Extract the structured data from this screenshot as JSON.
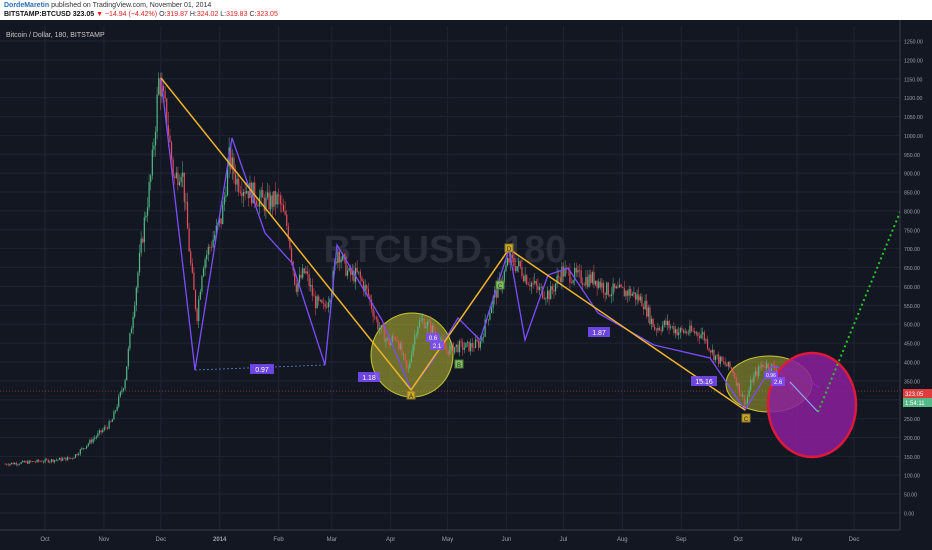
{
  "header": {
    "author": "DordeMaretin",
    "published_text": "published on TradingView.com, November 01, 2014",
    "symbol": "BITSTAMP:BTCUSD",
    "last": "323.05",
    "change": "−14.94 (−4.42%)",
    "open_label": "O:",
    "open": "319.87",
    "high_label": "H:",
    "high": "324.02",
    "low_label": "L:",
    "low": "319.83",
    "close_label": "C:",
    "close": "323.05"
  },
  "chart_title": "Bitcoin / Dollar, 180, BITSTAMP",
  "watermark": "BTCUSD, 180",
  "price_tags": {
    "current": "323.05",
    "countdown": "1:54:11"
  },
  "colors": {
    "background": "#131722",
    "bull": "#53b987",
    "bear": "#eb4d5c",
    "zigzag_orange": "#f0b32a",
    "zigzag_purple": "#7c4dff",
    "ellipse_fill": "#c8c832",
    "ellipse_red": "#e0183c",
    "ellipse_purple": "#8b1f9c",
    "projection_green": "#27c527"
  },
  "chart_data": {
    "type": "candlestick",
    "title": "Bitcoin / Dollar, 180, BITSTAMP",
    "ylim": [
      -50,
      1300
    ],
    "y_ticks": [
      "1250.00",
      "1200.00",
      "1150.00",
      "1100.00",
      "1050.00",
      "1000.00",
      "950.00",
      "900.00",
      "850.00",
      "800.00",
      "750.00",
      "700.00",
      "650.00",
      "600.00",
      "550.00",
      "500.00",
      "450.00",
      "400.00",
      "350.00",
      "300.00",
      "250.00",
      "200.00",
      "150.00",
      "100.00",
      "50.00",
      "0.00"
    ],
    "x_ticks": [
      "Oct",
      "Nov",
      "Dec",
      "2014",
      "Feb",
      "Mar",
      "Apr",
      "May",
      "Jun",
      "Jul",
      "Aug",
      "Sep",
      "Oct",
      "Nov",
      "Dec"
    ],
    "price_path": [
      [
        "2013-09-10",
        130
      ],
      [
        "2013-10-01",
        138
      ],
      [
        "2013-10-15",
        145
      ],
      [
        "2013-10-25",
        190
      ],
      [
        "2013-11-05",
        240
      ],
      [
        "2013-11-12",
        350
      ],
      [
        "2013-11-18",
        600
      ],
      [
        "2013-11-22",
        760
      ],
      [
        "2013-11-26",
        900
      ],
      [
        "2013-11-30",
        1150
      ],
      [
        "2013-12-04",
        1050
      ],
      [
        "2013-12-08",
        880
      ],
      [
        "2013-12-12",
        920
      ],
      [
        "2013-12-17",
        640
      ],
      [
        "2013-12-20",
        520
      ],
      [
        "2013-12-23",
        660
      ],
      [
        "2013-12-28",
        720
      ],
      [
        "2014-01-02",
        780
      ],
      [
        "2014-01-06",
        940
      ],
      [
        "2014-01-10",
        880
      ],
      [
        "2014-01-15",
        860
      ],
      [
        "2014-01-20",
        840
      ],
      [
        "2014-01-25",
        820
      ],
      [
        "2014-02-01",
        830
      ],
      [
        "2014-02-06",
        750
      ],
      [
        "2014-02-10",
        600
      ],
      [
        "2014-02-15",
        640
      ],
      [
        "2014-02-20",
        560
      ],
      [
        "2014-02-25",
        540
      ],
      [
        "2014-03-01",
        600
      ],
      [
        "2014-03-04",
        700
      ],
      [
        "2014-03-10",
        630
      ],
      [
        "2014-03-15",
        630
      ],
      [
        "2014-03-20",
        580
      ],
      [
        "2014-03-25",
        500
      ],
      [
        "2014-03-31",
        450
      ],
      [
        "2014-04-04",
        470
      ],
      [
        "2014-04-10",
        370
      ],
      [
        "2014-04-12",
        430
      ],
      [
        "2014-04-15",
        500
      ],
      [
        "2014-04-18",
        510
      ],
      [
        "2014-04-24",
        480
      ],
      [
        "2014-04-30",
        430
      ],
      [
        "2014-05-05",
        440
      ],
      [
        "2014-05-12",
        440
      ],
      [
        "2014-05-18",
        450
      ],
      [
        "2014-05-22",
        520
      ],
      [
        "2014-05-26",
        580
      ],
      [
        "2014-05-30",
        620
      ],
      [
        "2014-06-02",
        670
      ],
      [
        "2014-06-08",
        650
      ],
      [
        "2014-06-12",
        620
      ],
      [
        "2014-06-18",
        590
      ],
      [
        "2014-06-24",
        580
      ],
      [
        "2014-06-30",
        640
      ],
      [
        "2014-07-05",
        630
      ],
      [
        "2014-07-12",
        620
      ],
      [
        "2014-07-18",
        620
      ],
      [
        "2014-07-24",
        590
      ],
      [
        "2014-07-31",
        585
      ],
      [
        "2014-08-05",
        585
      ],
      [
        "2014-08-12",
        560
      ],
      [
        "2014-08-18",
        490
      ],
      [
        "2014-08-24",
        500
      ],
      [
        "2014-08-31",
        480
      ],
      [
        "2014-09-05",
        480
      ],
      [
        "2014-09-12",
        475
      ],
      [
        "2014-09-18",
        420
      ],
      [
        "2014-09-22",
        400
      ],
      [
        "2014-09-28",
        380
      ],
      [
        "2014-10-02",
        320
      ],
      [
        "2014-10-05",
        290
      ],
      [
        "2014-10-08",
        350
      ],
      [
        "2014-10-14",
        395
      ],
      [
        "2014-10-20",
        385
      ],
      [
        "2014-10-25",
        355
      ],
      [
        "2014-11-01",
        323
      ]
    ],
    "annotations": {
      "labels": [
        "0.97",
        "1.18",
        "0.6",
        "2.1",
        "1.87",
        "15.16",
        "0.96",
        "2.6"
      ],
      "points": [
        "A",
        "B",
        "C",
        "D",
        "C"
      ]
    }
  }
}
